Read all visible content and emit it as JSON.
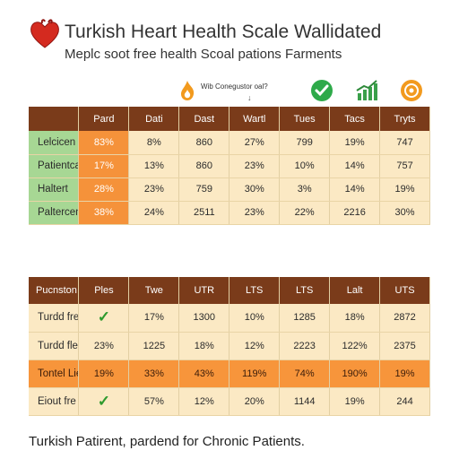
{
  "header": {
    "title": "Turkish Heart Health Scale Wallidated",
    "subtitle": "Meplc soot free health Scoal pations Farments"
  },
  "iconbar": {
    "caption": "Wib Conegustor oal?",
    "arrow": "↓",
    "colors": {
      "flame": "#f29a1e",
      "check": "#2eaa4a",
      "growth": "#3aa04a",
      "target": "#f29a1e"
    }
  },
  "table1": {
    "headers": [
      "",
      "Pard",
      "Dati",
      "Dast",
      "Wartl",
      "Tues",
      "Tacs",
      "Tryts"
    ],
    "rows": [
      {
        "label": "Lelcicen",
        "cells": [
          "83%",
          "8%",
          "860",
          "27%",
          "799",
          "19%",
          "747"
        ]
      },
      {
        "label": "Patientcation",
        "cells": [
          "17%",
          "13%",
          "860",
          "23%",
          "10%",
          "14%",
          "757"
        ]
      },
      {
        "label": "Haltert",
        "cells": [
          "28%",
          "23%",
          "759",
          "30%",
          "3%",
          "14%",
          "19%"
        ]
      },
      {
        "label": "Paltercen",
        "cells": [
          "38%",
          "24%",
          "2511",
          "23%",
          "22%",
          "2216",
          "30%"
        ]
      }
    ],
    "colors": {
      "header": "#7a3b1a",
      "label": "#a7d794",
      "highlight": "#f5923a",
      "body": "#fbe9c4"
    }
  },
  "table2": {
    "headers": [
      "Pucnston",
      "Ples",
      "Twe",
      "UTR",
      "LTS",
      "LTS",
      "Lalt",
      "UTS"
    ],
    "rows": [
      {
        "label": "Turdd fre halt",
        "check": true,
        "cells": [
          "",
          "17%",
          "1300",
          "10%",
          "1285",
          "18%",
          "2872"
        ]
      },
      {
        "label": "Turdd fle Japit",
        "check": false,
        "cells": [
          "23%",
          "1225",
          "18%",
          "12%",
          "2223",
          "122%",
          "2375"
        ]
      },
      {
        "label": "Tontel Lierolt",
        "check": false,
        "orange": true,
        "cells": [
          "19%",
          "33%",
          "43%",
          "119%",
          "74%",
          "190%",
          "19%"
        ]
      },
      {
        "label": "Eiout fre legia",
        "check": true,
        "cells": [
          "",
          "57%",
          "12%",
          "20%",
          "1144",
          "19%",
          "244"
        ]
      }
    ],
    "colors": {
      "header": "#7a3b1a",
      "orange_row": "#f7953b",
      "body": "#fbe9c4"
    }
  },
  "footer": {
    "text": "Turkish Patirent, pardend for Chronic Patients."
  }
}
